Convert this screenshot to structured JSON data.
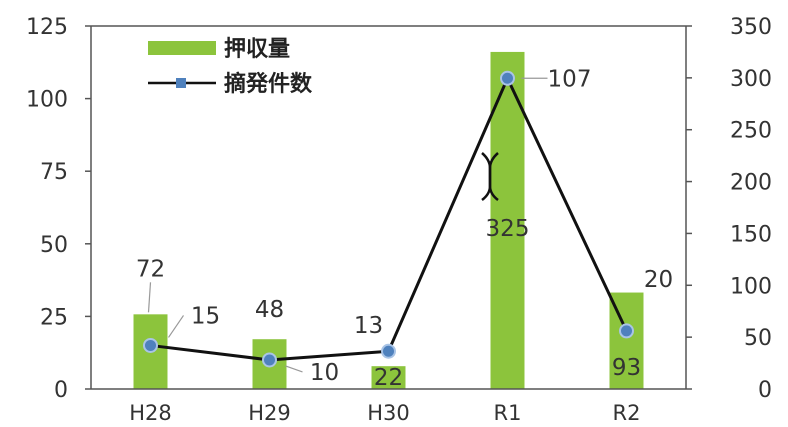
{
  "chart_data": {
    "type": "bar",
    "categories": [
      "H28",
      "H29",
      "H30",
      "R1",
      "R2"
    ],
    "series": [
      {
        "name": "押収量",
        "type": "bar",
        "axis": "right",
        "values": [
          72,
          48,
          22,
          325,
          93
        ],
        "color": "#8cc43c"
      },
      {
        "name": "摘発件数",
        "type": "line",
        "axis": "left",
        "values": [
          15,
          10,
          13,
          107,
          20
        ],
        "color": "#111111",
        "marker_color": "#4f81bd"
      }
    ],
    "y_left": {
      "ylim": [
        0,
        125
      ],
      "ticks": [
        "0",
        "25",
        "50",
        "75",
        "100",
        "125"
      ]
    },
    "y_right": {
      "ylim": [
        0,
        350
      ],
      "ticks": [
        "0",
        "50",
        "100",
        "150",
        "200",
        "250",
        "300",
        "350"
      ]
    },
    "legend_position": "top-left",
    "grid": false
  }
}
